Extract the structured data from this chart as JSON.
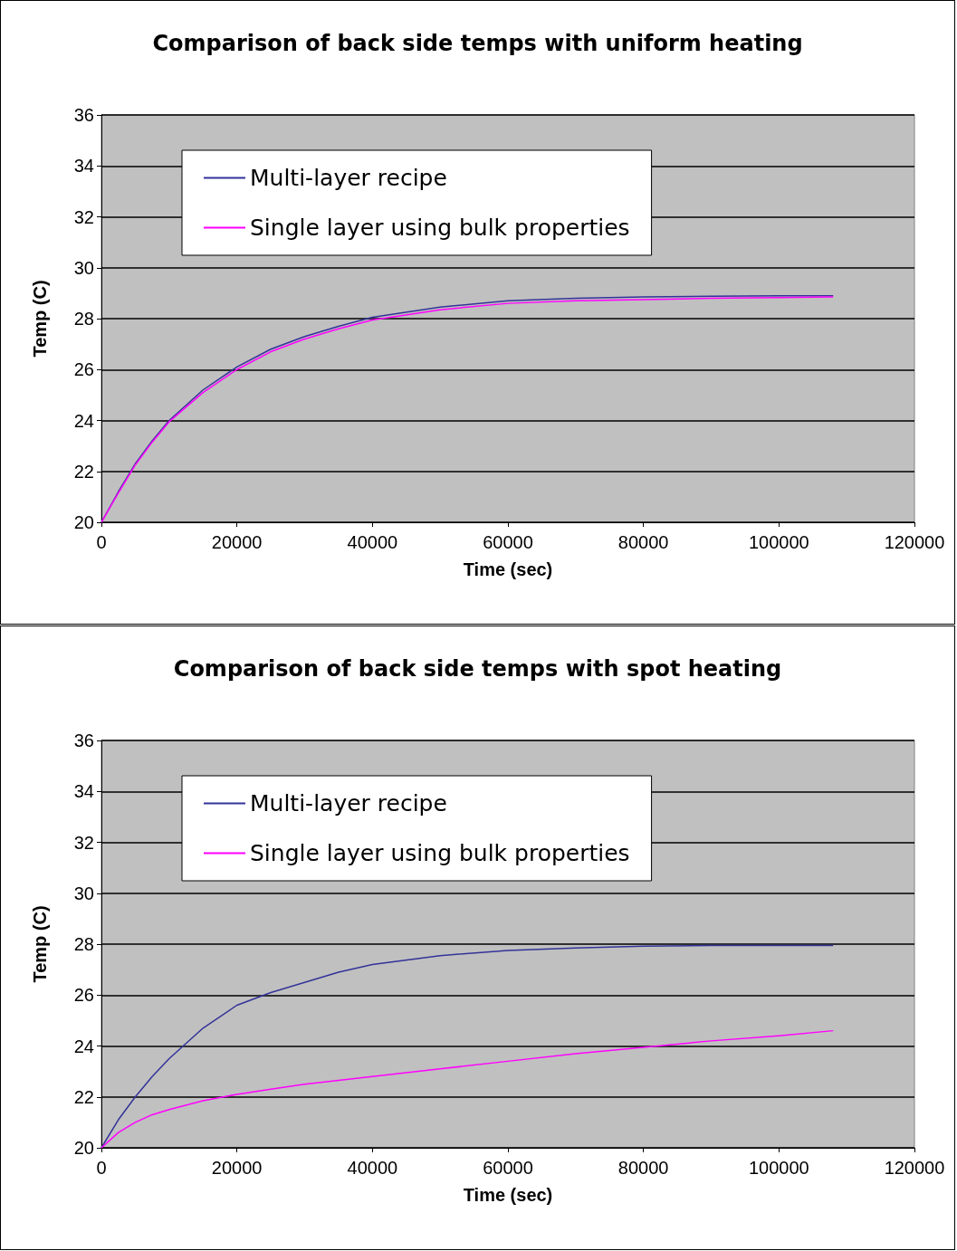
{
  "chart_data": [
    {
      "type": "line",
      "title": "Comparison of back side temps with uniform heating",
      "xlabel": "Time (sec)",
      "ylabel": "Temp (C)",
      "x": [
        0,
        2500,
        5000,
        7500,
        10000,
        15000,
        20000,
        25000,
        30000,
        35000,
        40000,
        50000,
        60000,
        70000,
        80000,
        90000,
        100000,
        108000
      ],
      "series": [
        {
          "name": "Multi-layer recipe",
          "color": "#333399",
          "values": [
            20,
            21.2,
            22.3,
            23.2,
            24.0,
            25.2,
            26.1,
            26.8,
            27.3,
            27.7,
            28.05,
            28.45,
            28.7,
            28.8,
            28.85,
            28.88,
            28.9,
            28.9
          ]
        },
        {
          "name": "Single layer using bulk properties",
          "color": "#ff00ff",
          "values": [
            20,
            21.15,
            22.25,
            23.15,
            23.95,
            25.1,
            26.0,
            26.7,
            27.2,
            27.6,
            27.95,
            28.35,
            28.6,
            28.7,
            28.75,
            28.8,
            28.83,
            28.85
          ]
        }
      ],
      "xlim": [
        0,
        120000
      ],
      "xticks": [
        0,
        20000,
        40000,
        60000,
        80000,
        100000,
        120000
      ],
      "ylim": [
        20,
        36
      ],
      "yticks": [
        20,
        22,
        24,
        26,
        28,
        30,
        32,
        34,
        36
      ],
      "grid": "y",
      "legend": "top left",
      "marker": "none",
      "line_style": "solid"
    },
    {
      "type": "line",
      "title": "Comparison of back side temps with spot heating",
      "xlabel": "Time (sec)",
      "ylabel": "Temp (C)",
      "x": [
        0,
        2500,
        5000,
        7500,
        10000,
        15000,
        20000,
        25000,
        30000,
        35000,
        40000,
        50000,
        60000,
        70000,
        80000,
        90000,
        100000,
        108000
      ],
      "series": [
        {
          "name": "Multi-layer recipe",
          "color": "#333399",
          "values": [
            20,
            21.1,
            22.0,
            22.8,
            23.5,
            24.7,
            25.6,
            26.1,
            26.5,
            26.9,
            27.2,
            27.55,
            27.75,
            27.85,
            27.92,
            27.95,
            27.95,
            27.95
          ]
        },
        {
          "name": "Single layer using bulk properties",
          "color": "#ff00ff",
          "values": [
            20,
            20.6,
            21.0,
            21.3,
            21.5,
            21.85,
            22.1,
            22.3,
            22.5,
            22.65,
            22.8,
            23.1,
            23.4,
            23.7,
            23.95,
            24.2,
            24.4,
            24.6
          ]
        }
      ],
      "xlim": [
        0,
        120000
      ],
      "xticks": [
        0,
        20000,
        40000,
        60000,
        80000,
        100000,
        120000
      ],
      "ylim": [
        20,
        36
      ],
      "yticks": [
        20,
        22,
        24,
        26,
        28,
        30,
        32,
        34,
        36
      ],
      "grid": "y",
      "legend": "top left",
      "marker": "none",
      "line_style": "solid"
    }
  ]
}
